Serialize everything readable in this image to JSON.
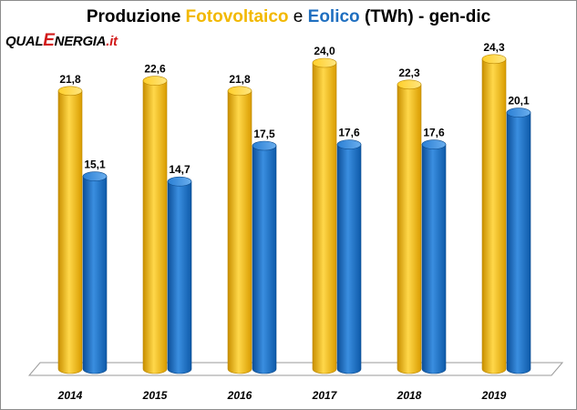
{
  "title": {
    "prefix": "Produzione",
    "series_a": "Fotovoltaico",
    "conj": "e",
    "series_b": "Eolico",
    "suffix": "(TWh) - gen-dic"
  },
  "logo": {
    "part1": "QUAL",
    "part2": "E",
    "part3": "NERGIA",
    "part4": ".it"
  },
  "colors": {
    "fotovoltaico": "#f5b400",
    "eolico": "#1565c0"
  },
  "chart_data": {
    "type": "bar",
    "title": "Produzione Fotovoltaico e Eolico (TWh) - gen-dic",
    "categories": [
      "2014",
      "2015",
      "2016",
      "2017",
      "2018",
      "2019"
    ],
    "series": [
      {
        "name": "Fotovoltaico",
        "values": [
          21.8,
          22.6,
          21.8,
          24.0,
          22.3,
          24.3
        ],
        "labels": [
          "21,8",
          "22,6",
          "21,8",
          "24,0",
          "22,3",
          "24,3"
        ]
      },
      {
        "name": "Eolico",
        "values": [
          15.1,
          14.7,
          17.5,
          17.6,
          17.6,
          20.1
        ],
        "labels": [
          "15,1",
          "14,7",
          "17,5",
          "17,6",
          "17,6",
          "20,1"
        ]
      }
    ],
    "ylim": [
      0,
      26
    ],
    "grid": false,
    "legend": "none"
  }
}
